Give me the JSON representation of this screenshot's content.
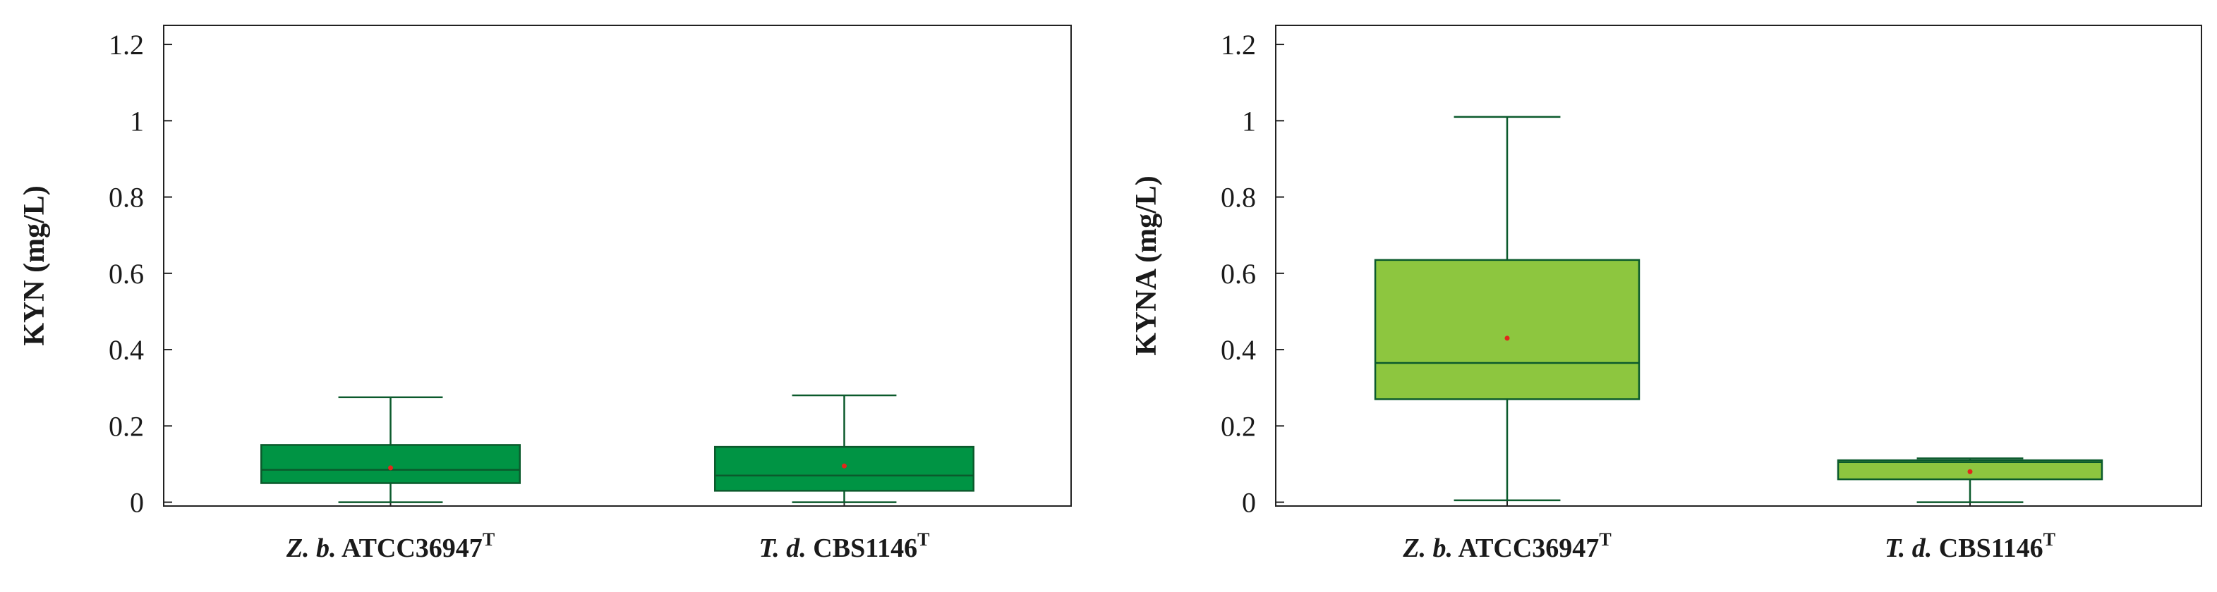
{
  "chart_data": [
    {
      "type": "box",
      "ylabel": "KYN (mg/L)",
      "ylim": [
        -0.01,
        1.25
      ],
      "yticks": [
        0,
        0.2,
        0.4,
        0.6,
        0.8,
        1,
        1.2
      ],
      "ytick_labels": [
        "0",
        "0.2",
        "0.4",
        "0.6",
        "0.8",
        "1",
        "1.2"
      ],
      "box_color": "#009444",
      "line_color": "#0b5a2c",
      "mean_color": "#e0281b",
      "categories": [
        {
          "italic": "Z. b.",
          "text": " ATCC36947",
          "sup": "T"
        },
        {
          "italic": "T. d.",
          "text": " CBS1146",
          "sup": "T"
        }
      ],
      "series": [
        {
          "min": 0.0,
          "q1": 0.05,
          "median": 0.085,
          "q3": 0.15,
          "max": 0.275,
          "mean": 0.09
        },
        {
          "min": 0.0,
          "q1": 0.03,
          "median": 0.07,
          "q3": 0.145,
          "max": 0.28,
          "mean": 0.095
        }
      ]
    },
    {
      "type": "box",
      "ylabel": "KYNA (mg/L)",
      "ylim": [
        -0.01,
        1.25
      ],
      "yticks": [
        0,
        0.2,
        0.4,
        0.6,
        0.8,
        1,
        1.2
      ],
      "ytick_labels": [
        "0",
        "0.2",
        "0.4",
        "0.6",
        "0.8",
        "1",
        "1.2"
      ],
      "box_color": "#8dc63f",
      "line_color": "#0b5a2c",
      "mean_color": "#e0281b",
      "categories": [
        {
          "italic": "Z. b.",
          "text": " ATCC36947",
          "sup": "T"
        },
        {
          "italic": "T. d.",
          "text": " CBS1146",
          "sup": "T"
        }
      ],
      "series": [
        {
          "min": 0.005,
          "q1": 0.27,
          "median": 0.365,
          "q3": 0.635,
          "max": 1.01,
          "mean": 0.43
        },
        {
          "min": 0.0,
          "q1": 0.06,
          "median": 0.105,
          "q3": 0.11,
          "max": 0.115,
          "mean": 0.08
        }
      ]
    }
  ]
}
